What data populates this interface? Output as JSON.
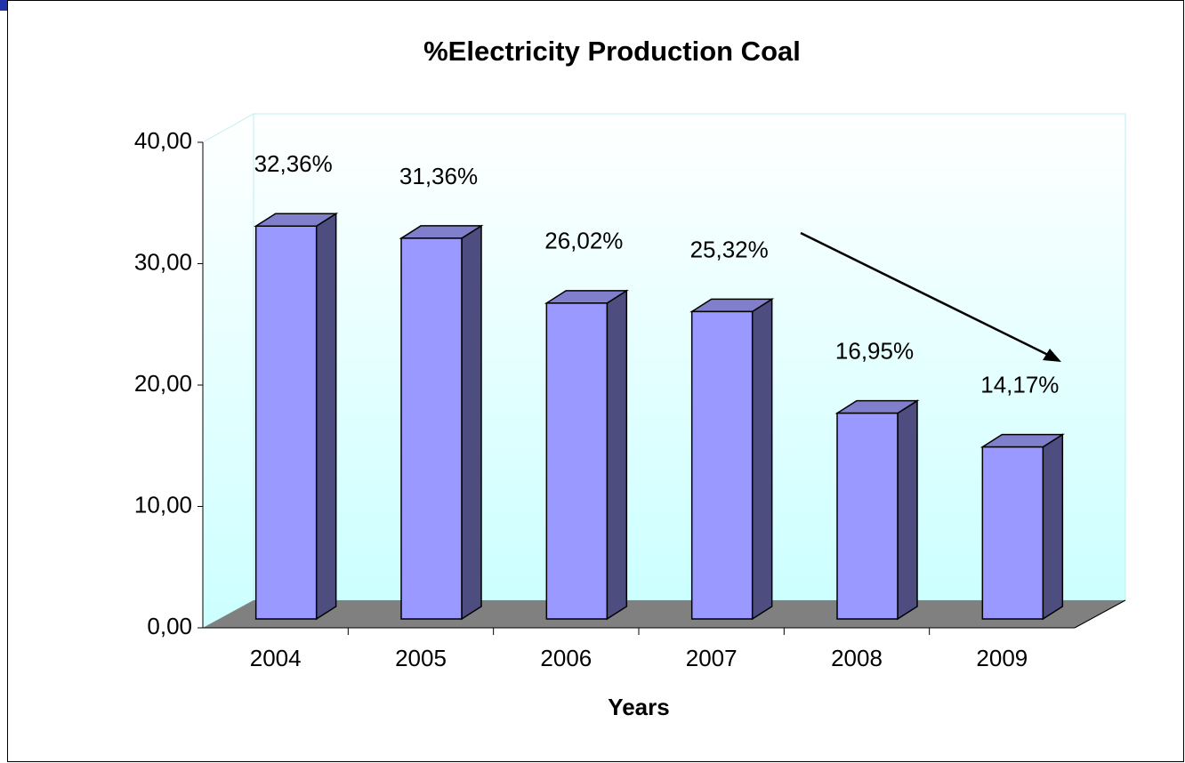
{
  "chart_data": {
    "type": "bar3d",
    "title": "%Electricity Production Coal",
    "x_label": "Years",
    "categories": [
      "2004",
      "2005",
      "2006",
      "2007",
      "2008",
      "2009"
    ],
    "values": [
      32.36,
      31.36,
      26.02,
      25.32,
      16.95,
      14.17
    ],
    "value_labels": [
      "32,36%",
      "31,36%",
      "26,02%",
      "25,32%",
      "16,95%",
      "14,17%"
    ],
    "color": "#9999ff",
    "ylim": [
      0,
      40
    ],
    "yticks": [
      {
        "value": 0,
        "label": "0,00"
      },
      {
        "value": 10,
        "label": "10,00"
      },
      {
        "value": 20,
        "label": "20,00"
      },
      {
        "value": 30,
        "label": "30,00"
      },
      {
        "value": 40,
        "label": "40,00"
      }
    ]
  }
}
